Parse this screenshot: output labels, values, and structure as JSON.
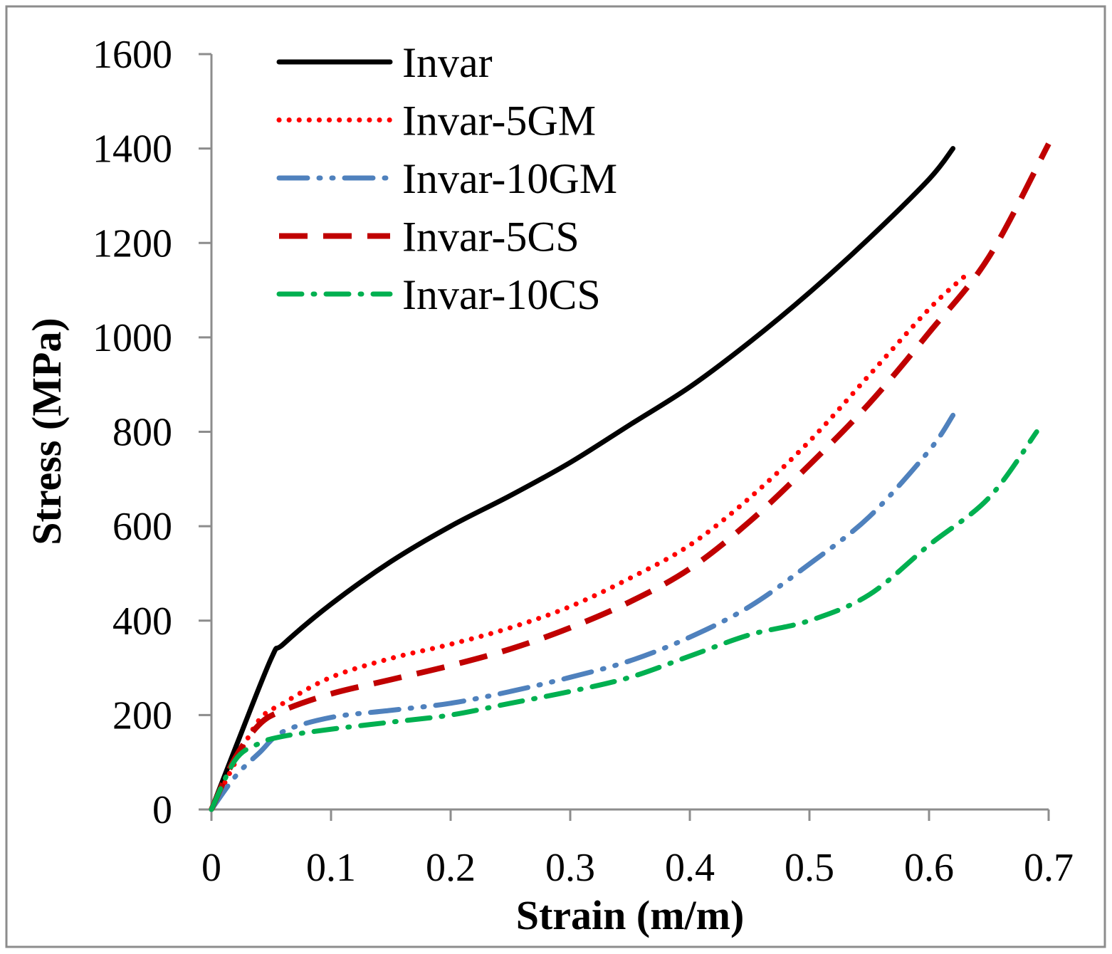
{
  "chart_data": {
    "type": "line",
    "title": "",
    "xlabel": "Strain (m/m)",
    "ylabel": "Stress (MPa)",
    "xlim": [
      0,
      0.7
    ],
    "ylim": [
      0,
      1600
    ],
    "xticks": [
      "0",
      "0.1",
      "0.2",
      "0.3",
      "0.4",
      "0.5",
      "0.6",
      "0.7"
    ],
    "xtick_values": [
      0,
      0.1,
      0.2,
      0.3,
      0.4,
      0.5,
      0.6,
      0.7
    ],
    "yticks": [
      "0",
      "200",
      "400",
      "600",
      "800",
      "1000",
      "1200",
      "1400",
      "1600"
    ],
    "ytick_values": [
      0,
      200,
      400,
      600,
      800,
      1000,
      1200,
      1400,
      1600
    ],
    "grid": false,
    "legend_position": "top-left",
    "series": [
      {
        "name": "Invar",
        "color": "#000000",
        "style": "solid",
        "x": [
          0,
          0.02,
          0.05,
          0.06,
          0.1,
          0.15,
          0.2,
          0.25,
          0.3,
          0.35,
          0.4,
          0.45,
          0.5,
          0.55,
          0.6,
          0.62
        ],
        "y": [
          0,
          130,
          320,
          350,
          435,
          525,
          600,
          665,
          735,
          815,
          895,
          990,
          1095,
          1210,
          1335,
          1400
        ]
      },
      {
        "name": "Invar-5GM",
        "color": "#ff0000",
        "style": "dotted",
        "x": [
          0,
          0.02,
          0.04,
          0.06,
          0.1,
          0.15,
          0.2,
          0.25,
          0.3,
          0.35,
          0.4,
          0.45,
          0.5,
          0.55,
          0.6,
          0.63
        ],
        "y": [
          0,
          100,
          190,
          225,
          280,
          320,
          350,
          385,
          430,
          490,
          560,
          660,
          780,
          920,
          1060,
          1130
        ]
      },
      {
        "name": "Invar-10GM",
        "color": "#4f81bd",
        "style": "dash-dot-dot",
        "x": [
          0,
          0.02,
          0.04,
          0.06,
          0.1,
          0.15,
          0.2,
          0.25,
          0.3,
          0.35,
          0.4,
          0.45,
          0.5,
          0.55,
          0.6,
          0.62
        ],
        "y": [
          0,
          70,
          120,
          165,
          195,
          210,
          225,
          250,
          280,
          315,
          365,
          430,
          520,
          620,
          760,
          835
        ]
      },
      {
        "name": "Invar-5CS",
        "color": "#c00000",
        "style": "dashed",
        "x": [
          0,
          0.02,
          0.04,
          0.06,
          0.1,
          0.15,
          0.2,
          0.25,
          0.3,
          0.35,
          0.4,
          0.45,
          0.5,
          0.55,
          0.6,
          0.65,
          0.7
        ],
        "y": [
          0,
          110,
          180,
          210,
          245,
          275,
          305,
          340,
          385,
          440,
          510,
          610,
          730,
          860,
          1010,
          1170,
          1410
        ]
      },
      {
        "name": "Invar-10CS",
        "color": "#00b050",
        "style": "dash-dot",
        "x": [
          0,
          0.02,
          0.04,
          0.06,
          0.1,
          0.15,
          0.2,
          0.25,
          0.3,
          0.35,
          0.4,
          0.45,
          0.5,
          0.55,
          0.6,
          0.65,
          0.69
        ],
        "y": [
          0,
          105,
          140,
          155,
          170,
          185,
          200,
          225,
          250,
          280,
          325,
          370,
          400,
          455,
          560,
          660,
          800
        ]
      }
    ]
  }
}
